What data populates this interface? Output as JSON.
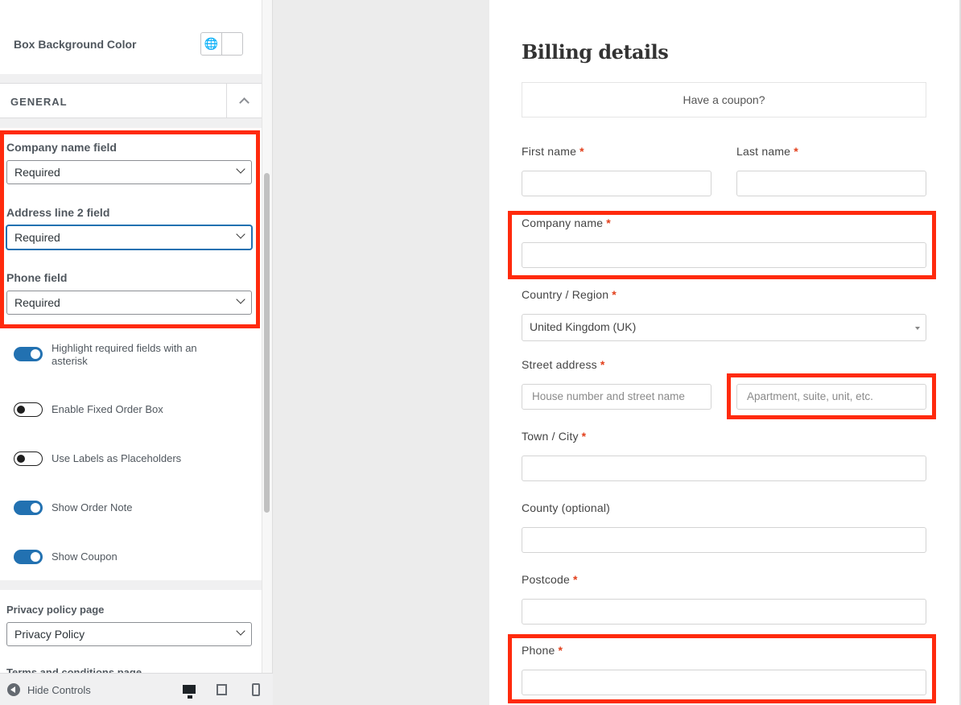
{
  "sidebar": {
    "box_bg_label": "Box Background Color",
    "section_title": "GENERAL",
    "company_label": "Company name field",
    "company_value": "Required",
    "address2_label": "Address line 2 field",
    "address2_value": "Required",
    "phone_label": "Phone field",
    "phone_value": "Required",
    "toggles": [
      {
        "label": "Highlight required fields with an asterisk",
        "on": true
      },
      {
        "label": "Enable Fixed Order Box",
        "on": false
      },
      {
        "label": "Use Labels as Placeholders",
        "on": false
      },
      {
        "label": "Show Order Note",
        "on": true
      },
      {
        "label": "Show Coupon",
        "on": true
      }
    ],
    "privacy_label": "Privacy policy page",
    "privacy_value": "Privacy Policy",
    "terms_label": "Terms and conditions page",
    "hide_controls": "Hide Controls"
  },
  "billing": {
    "title": "Billing details",
    "coupon": "Have a coupon?",
    "first_name": "First name",
    "last_name": "Last name",
    "company": "Company name",
    "country": "Country / Region",
    "country_value": "United Kingdom (UK)",
    "street": "Street address",
    "street_placeholder": "House number and street name",
    "apt_placeholder": "Apartment, suite, unit, etc.",
    "town": "Town / City",
    "county": "County (optional)",
    "postcode": "Postcode",
    "phone": "Phone",
    "asterisk": "*"
  },
  "colors": {
    "highlight": "#ff2a0d",
    "toggle_on": "#2271b1",
    "required": "#e2401c"
  }
}
